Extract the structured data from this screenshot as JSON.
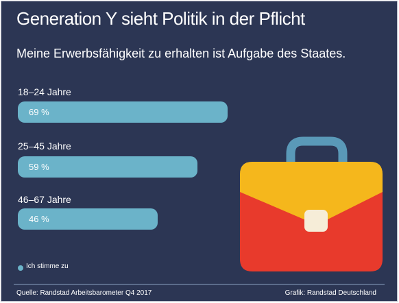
{
  "title": "Generation Y sieht Politik in der Pflicht",
  "subtitle": "Meine Erwerbsfähigkeit zu erhalten ist Aufgabe des Staates.",
  "chart_data": {
    "type": "bar",
    "orientation": "horizontal",
    "title": "Generation Y sieht Politik in der Pflicht",
    "subtitle": "Meine Erwerbsfähigkeit zu erhalten ist Aufgabe des Staates.",
    "categories": [
      "18–24 Jahre",
      "25–45 Jahre",
      "46–67 Jahre"
    ],
    "series": [
      {
        "name": "Ich stimme zu",
        "values": [
          69,
          59,
          46
        ]
      }
    ],
    "value_labels": [
      "69 %",
      "59 %",
      "46 %"
    ],
    "unit": "%",
    "xlim": [
      0,
      100
    ],
    "grid": false,
    "legend": "bottom-left",
    "colors": {
      "bar": "#6bb3c9",
      "background": "#2c3654"
    }
  },
  "legend": {
    "label": "Ich stimme zu"
  },
  "footer": {
    "source": "Quelle: Randstad Arbeitsbarometer Q4 2017",
    "credit": "Grafik: Randstad Deutschland"
  },
  "illustration": {
    "icon": "briefcase-icon",
    "colors": {
      "handle": "#5a99b8",
      "top": "#f5b71c",
      "body": "#e83a2c",
      "clasp": "#f6edd8"
    }
  }
}
